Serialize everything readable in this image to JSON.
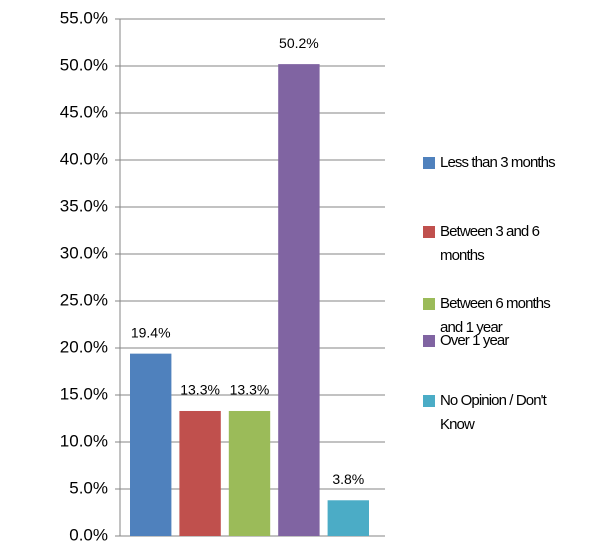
{
  "chart_data": {
    "type": "bar",
    "categories": [
      null
    ],
    "series": [
      {
        "name": "Less than 3 months",
        "color": "#4f81bd",
        "values": [
          19.4
        ],
        "value_labels": [
          "19.4%"
        ]
      },
      {
        "name": "Between 3 and 6 months",
        "color": "#c0504d",
        "values": [
          13.3
        ],
        "value_labels": [
          "13.3%"
        ]
      },
      {
        "name": "Between 6 months and 1 year",
        "color": "#9bbb59",
        "values": [
          13.3
        ],
        "value_labels": [
          "13.3%"
        ]
      },
      {
        "name": "Over 1 year",
        "color": "#8064a2",
        "values": [
          50.2
        ],
        "value_labels": [
          "50.2%"
        ]
      },
      {
        "name": "No Opinion / Don't Know",
        "color": "#4bacc6",
        "values": [
          3.8
        ],
        "value_labels": [
          "3.8%"
        ]
      }
    ],
    "ylim": [
      0,
      55
    ],
    "yticks": [
      {
        "value": 0,
        "label": "0.0%"
      },
      {
        "value": 5,
        "label": "5.0%"
      },
      {
        "value": 10,
        "label": "10.0%"
      },
      {
        "value": 15,
        "label": "15.0%"
      },
      {
        "value": 20,
        "label": "20.0%"
      },
      {
        "value": 25,
        "label": "25.0%"
      },
      {
        "value": 30,
        "label": "30.0%"
      },
      {
        "value": 35,
        "label": "35.0%"
      },
      {
        "value": 40,
        "label": "40.0%"
      },
      {
        "value": 45,
        "label": "45.0%"
      },
      {
        "value": 50,
        "label": "50.0%"
      },
      {
        "value": 55,
        "label": "55.0%"
      }
    ],
    "grid": true,
    "legend": "right"
  }
}
